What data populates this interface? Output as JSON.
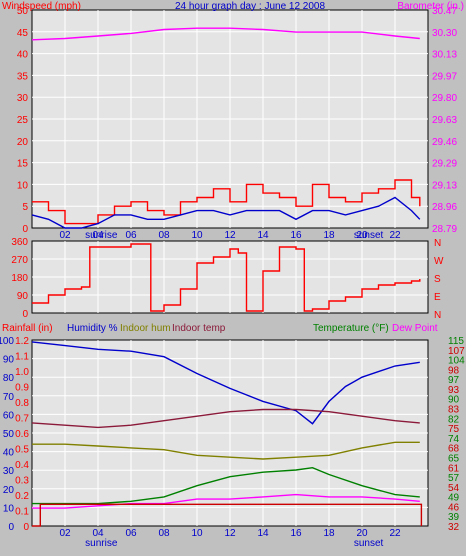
{
  "colors": {
    "background": "#c0c0c0",
    "plot_bg": "#e4e4e4",
    "grid": "#ffffff",
    "red": "#ff0000",
    "blue": "#0000cc",
    "magenta": "#ff00ff",
    "green": "#008000",
    "olive": "#808000",
    "maroon": "#8b1a3a",
    "darkred": "#cc0000"
  },
  "chart_data": [
    {
      "type": "line",
      "title": "24 hour graph day : June 12 2008",
      "ylabel": "Windspeed (mph)",
      "y2label": "Barometer (in.)",
      "ylim": [
        0,
        50
      ],
      "y_ticks": [
        "0",
        "5",
        "10",
        "15",
        "20",
        "25",
        "30",
        "35",
        "40",
        "45",
        "50"
      ],
      "y2lim": [
        28.79,
        30.47
      ],
      "y2_ticks": [
        "28.79",
        "28.96",
        "29.13",
        "29.29",
        "29.46",
        "29.63",
        "29.80",
        "29.97",
        "30.13",
        "30.30",
        "30.47"
      ],
      "x_ticks": [
        "02",
        "04",
        "06",
        "08",
        "10",
        "12",
        "14",
        "16",
        "18",
        "20",
        "22"
      ],
      "x_annotations": [
        "sunrise",
        "sunset"
      ],
      "sunrise_hour": 4.2,
      "sunset_hour": 20.4,
      "grid": true,
      "series": [
        {
          "name": "Barometer",
          "axis": "right",
          "color": "#ff00ff",
          "x": [
            0,
            2,
            4,
            6,
            8,
            10,
            12,
            14,
            16,
            18,
            20,
            22,
            23.5
          ],
          "values": [
            30.24,
            30.25,
            30.27,
            30.29,
            30.32,
            30.33,
            30.33,
            30.32,
            30.3,
            30.3,
            30.3,
            30.27,
            30.25
          ]
        },
        {
          "name": "Wind gust",
          "axis": "left",
          "color": "#ff0000",
          "x": [
            0,
            1,
            2,
            3,
            4,
            5,
            6,
            7,
            8,
            9,
            10,
            11,
            12,
            13,
            14,
            15,
            16,
            17,
            18,
            19,
            20,
            21,
            22,
            23,
            23.5
          ],
          "values": [
            6,
            4,
            1,
            1,
            3,
            5,
            6,
            4,
            3,
            6,
            7,
            9,
            6,
            10,
            8,
            7,
            5,
            10,
            7,
            6,
            8,
            9,
            11,
            7,
            5
          ]
        },
        {
          "name": "Wind average",
          "axis": "left",
          "color": "#0000cc",
          "x": [
            0,
            1,
            2,
            3,
            4,
            5,
            6,
            7,
            8,
            9,
            10,
            11,
            12,
            13,
            14,
            15,
            16,
            17,
            18,
            19,
            20,
            21,
            22,
            23,
            23.5
          ],
          "values": [
            3,
            2,
            0,
            0,
            1,
            3,
            3,
            2,
            2,
            3,
            4,
            4,
            3,
            4,
            4,
            4,
            2,
            4,
            4,
            3,
            4,
            5,
            7,
            4,
            2
          ]
        }
      ]
    },
    {
      "type": "line",
      "y_ticks": [
        "0",
        "90",
        "180",
        "270",
        "360"
      ],
      "ylim": [
        0,
        360
      ],
      "y2_ticks": [
        "N",
        "W",
        "S",
        "E",
        "N"
      ],
      "series": [
        {
          "name": "Wind direction",
          "color": "#ff0000",
          "x": [
            0,
            1,
            2,
            3,
            3.5,
            6,
            7,
            7.2,
            8,
            9,
            10,
            11,
            12,
            12.5,
            13,
            14,
            15,
            16,
            16.5,
            17,
            18,
            19,
            20,
            21,
            22,
            23,
            23.5
          ],
          "values": [
            50,
            90,
            120,
            130,
            330,
            345,
            345,
            10,
            40,
            120,
            250,
            280,
            320,
            300,
            10,
            210,
            330,
            320,
            10,
            20,
            60,
            80,
            120,
            140,
            150,
            160,
            170
          ]
        }
      ]
    },
    {
      "type": "line",
      "ylabel": "Rainfall (in)",
      "y_ticks": [
        "0",
        "0.1",
        "0.2",
        "0.3",
        "0.4",
        "0.5",
        "0.6",
        "0.7",
        "0.8",
        "0.9",
        "1.0",
        "1.1",
        "1.2"
      ],
      "ylim": [
        0,
        1.2
      ],
      "y2_ticks": [
        "0",
        "10",
        "20",
        "30",
        "40",
        "50",
        "60",
        "70",
        "80",
        "90",
        "100"
      ],
      "y2lim": [
        0,
        100
      ],
      "y3label": "Temperature (°F)",
      "y3_ticks": [
        "32",
        "39",
        "46",
        "49",
        "54",
        "57",
        "61",
        "65",
        "68",
        "74",
        "75",
        "82",
        "83",
        "90",
        "93",
        "97",
        "98",
        "104",
        "107",
        "115"
      ],
      "y3lim": [
        32,
        115
      ],
      "y4label": "Dew Point",
      "legend": [
        "Humidity %",
        "Indoor hum",
        "Indoor temp"
      ],
      "series": [
        {
          "name": "Humidity %",
          "axis": "humidity",
          "color": "#0000cc",
          "x": [
            0,
            2,
            4,
            6,
            8,
            10,
            12,
            14,
            16,
            17,
            18,
            19,
            20,
            22,
            23.5
          ],
          "values": [
            99,
            97,
            95,
            94,
            91,
            82,
            74,
            67,
            62,
            55,
            67,
            75,
            80,
            86,
            88
          ]
        },
        {
          "name": "Indoor hum",
          "axis": "humidity",
          "color": "#808000",
          "x": [
            0,
            2,
            4,
            6,
            8,
            10,
            12,
            14,
            16,
            18,
            20,
            22,
            23.5
          ],
          "values": [
            44,
            44,
            43,
            42,
            41,
            38,
            37,
            36,
            37,
            38,
            42,
            45,
            45
          ]
        },
        {
          "name": "Indoor temp",
          "axis": "temp",
          "color": "#8b1a3a",
          "x": [
            0,
            2,
            4,
            6,
            8,
            10,
            12,
            14,
            16,
            18,
            20,
            22,
            23.5
          ],
          "values": [
            78,
            77,
            76,
            77,
            79,
            81,
            83,
            84,
            84,
            83,
            81,
            79,
            78
          ]
        },
        {
          "name": "Temperature",
          "axis": "temp",
          "color": "#008000",
          "x": [
            0,
            2,
            4,
            6,
            8,
            10,
            12,
            14,
            16,
            17,
            18,
            20,
            22,
            23.5
          ],
          "values": [
            42,
            42,
            42,
            43,
            45,
            50,
            54,
            56,
            57,
            58,
            55,
            50,
            46,
            45
          ]
        },
        {
          "name": "Dew Point",
          "axis": "temp",
          "color": "#ff00ff",
          "x": [
            0,
            2,
            4,
            6,
            8,
            10,
            12,
            14,
            16,
            18,
            20,
            22,
            23.5
          ],
          "values": [
            40,
            40,
            41,
            42,
            42,
            44,
            44,
            45,
            46,
            45,
            45,
            44,
            43
          ]
        },
        {
          "name": "Rainfall",
          "axis": "rain",
          "color": "#cc0000",
          "x": [
            0,
            0.5,
            1,
            23.5,
            23.6
          ],
          "values": [
            0,
            0.14,
            0.14,
            0.14,
            0
          ]
        }
      ]
    }
  ]
}
